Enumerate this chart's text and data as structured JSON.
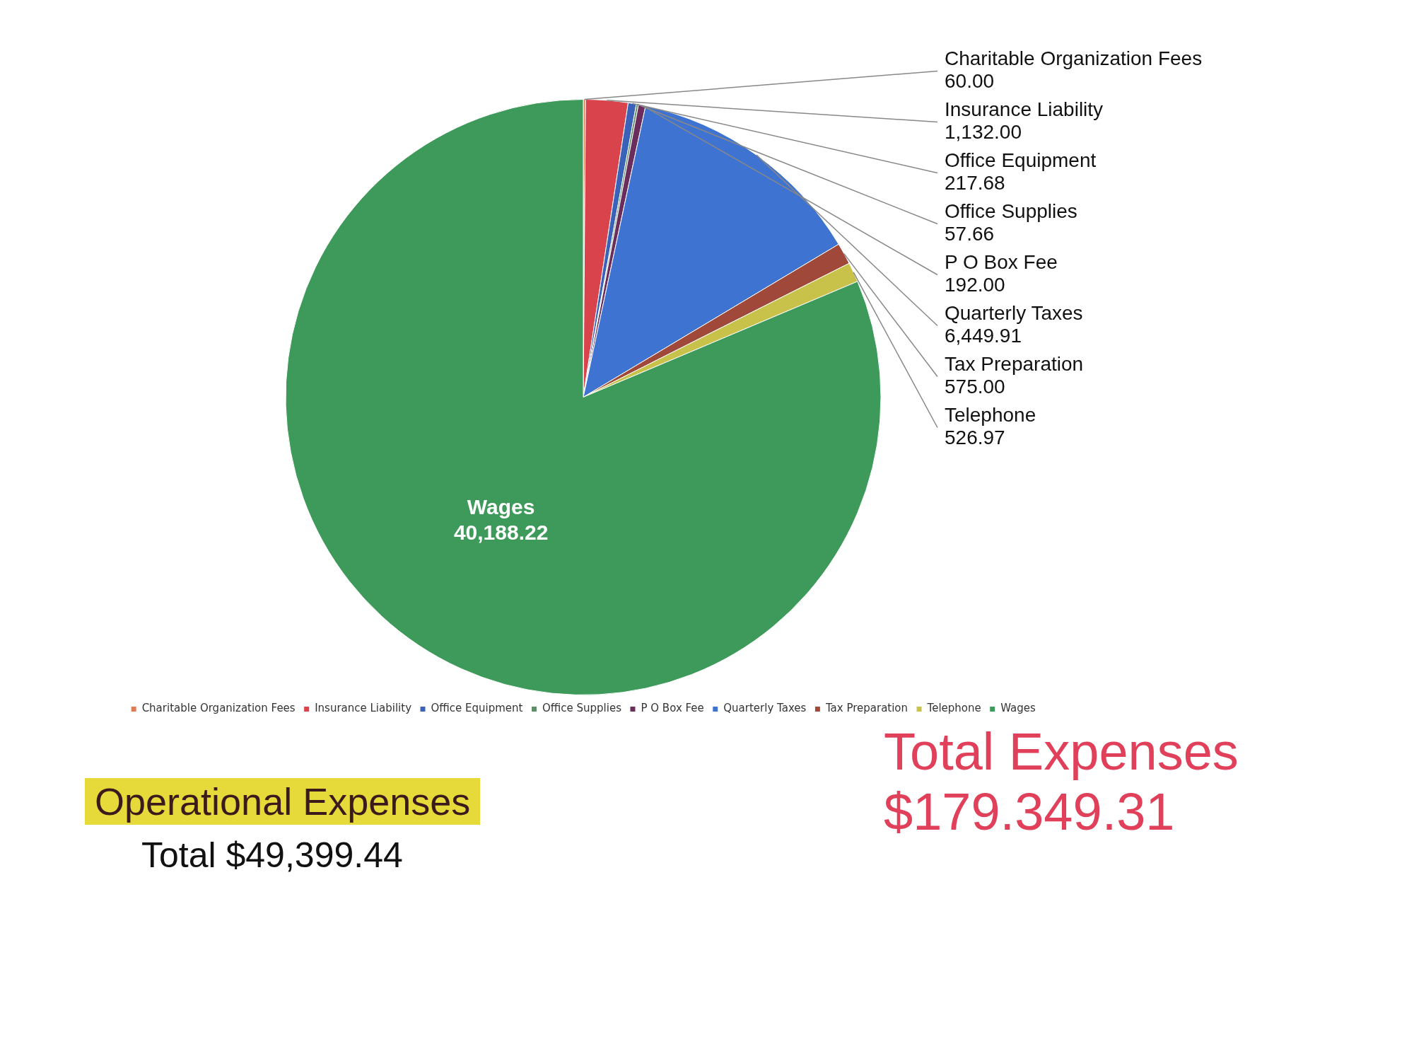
{
  "chart_data": {
    "type": "pie",
    "categories": [
      "Charitable Organization Fees",
      "Insurance Liability",
      "Office Equipment",
      "Office Supplies",
      "P O Box Fee",
      "Quarterly Taxes",
      "Tax Preparation",
      "Telephone",
      "Wages"
    ],
    "values": [
      60.0,
      1132.0,
      217.68,
      57.66,
      192.0,
      6449.91,
      575.0,
      526.97,
      40188.22
    ],
    "value_labels": [
      "60.00",
      "1,132.00",
      "217.68",
      "57.66",
      "192.00",
      "6,449.91",
      "575.00",
      "526.97",
      "40,188.22"
    ],
    "colors": [
      "#e07b53",
      "#d9434b",
      "#3a62b8",
      "#5f8f6a",
      "#6b2d5c",
      "#3f73d1",
      "#a0493b",
      "#c8c24a",
      "#3e9a5a"
    ],
    "legend": "bottom",
    "annotations": [
      "Operational Expenses",
      "Total $49,399.44",
      "Total Expenses",
      "$179.349.31"
    ]
  }
}
